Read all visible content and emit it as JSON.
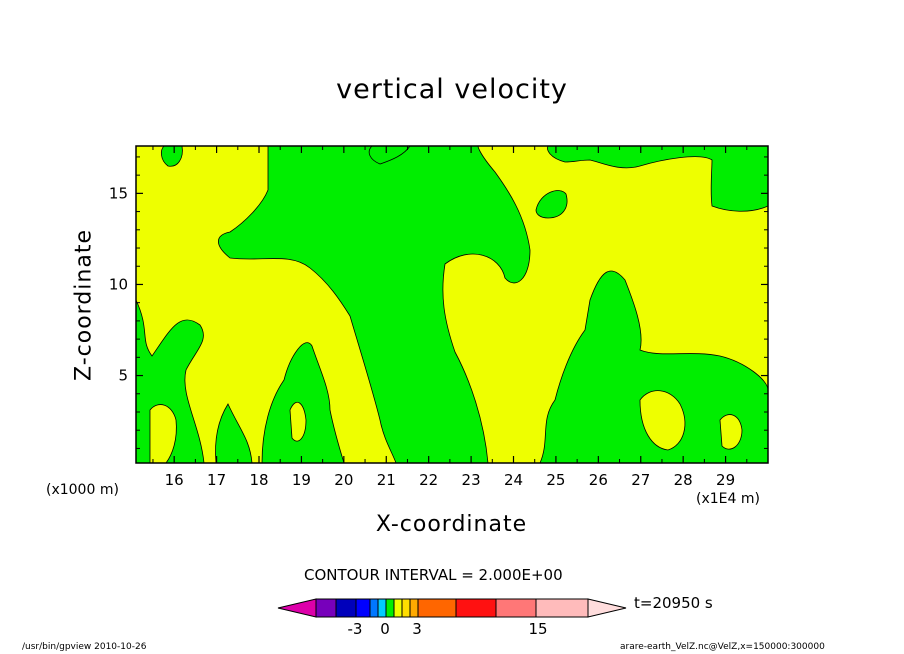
{
  "chart_data": {
    "type": "heatmap",
    "title": "vertical velocity",
    "xlabel": "X-coordinate",
    "ylabel": "Z-coordinate",
    "x_unit_label": "(x1E4 m)",
    "y_unit_label": "(x1000 m)",
    "xlim": [
      15.1,
      30.0
    ],
    "ylim": [
      0.2,
      17.6
    ],
    "x_ticks": [
      16,
      17,
      18,
      19,
      20,
      21,
      22,
      23,
      24,
      25,
      26,
      27,
      28,
      29
    ],
    "y_ticks": [
      5,
      10,
      15
    ],
    "contour_interval_label": "CONTOUR INTERVAL = 2.000E+00",
    "time_label": "t=20950 s",
    "colorbar_tick_labels": [
      "-3",
      "0",
      "3",
      "15"
    ],
    "colors": {
      "positive_region": "#eeff00",
      "negative_region": "#00ee00",
      "contour_line": "#000000",
      "colorbar": [
        "#dd00aa",
        "#7700bb",
        "#0000bb",
        "#0000ff",
        "#0077ff",
        "#00ccff",
        "#00ee00",
        "#eeff00",
        "#ffdd00",
        "#ffaa00",
        "#ff6600",
        "#ff1111",
        "#ff7777",
        "#ffbbbb",
        "#ffdddd"
      ]
    }
  },
  "footer": {
    "left": "/usr/bin/gpview   2010-10-26",
    "right": "arare-earth_VelZ.nc@VelZ,x=150000:300000"
  }
}
